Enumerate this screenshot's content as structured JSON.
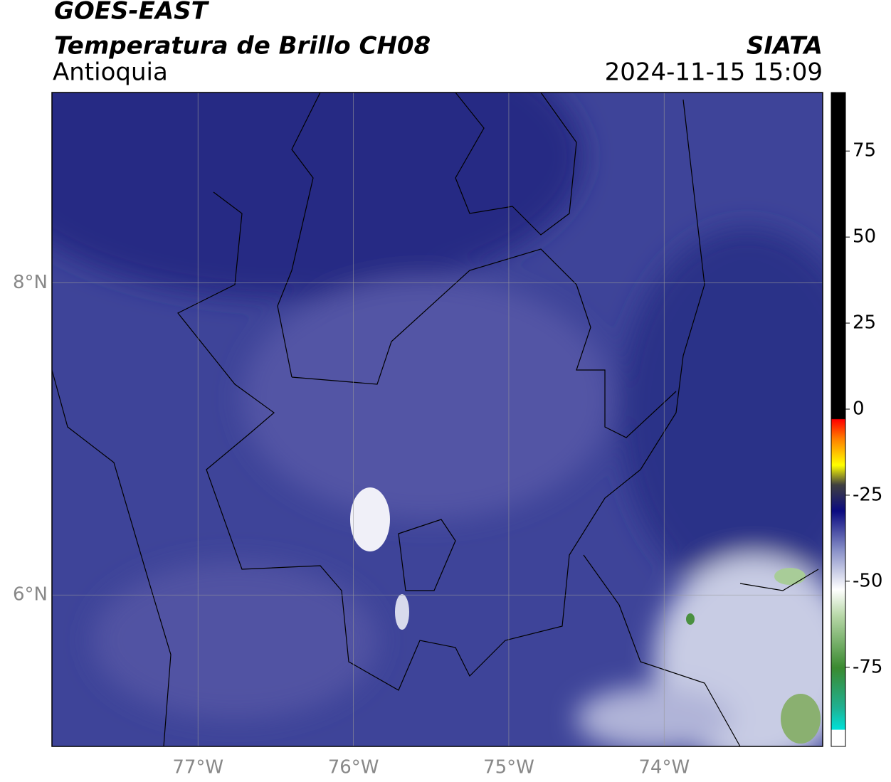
{
  "map": {
    "satellite": "GOES-EAST",
    "title": "Temperatura de Brillo CH08",
    "source": "SIATA",
    "region": "Antioquia",
    "datetime": "2024-11-15 15:09",
    "xlim": [
      -77.94,
      -72.98
    ],
    "ylim": [
      5.03,
      9.22
    ],
    "xticks": [
      {
        "value": -77,
        "label": "77°W"
      },
      {
        "value": -76,
        "label": "76°W"
      },
      {
        "value": -75,
        "label": "75°W"
      },
      {
        "value": -74,
        "label": "74°W"
      }
    ],
    "yticks": [
      {
        "value": 6,
        "label": "6°N"
      },
      {
        "value": 8,
        "label": "8°N"
      }
    ],
    "grid": true,
    "colorbar": {
      "lim": [
        -98,
        92
      ],
      "ticks": [
        75,
        50,
        25,
        0,
        -25,
        -50,
        -75
      ]
    }
  }
}
